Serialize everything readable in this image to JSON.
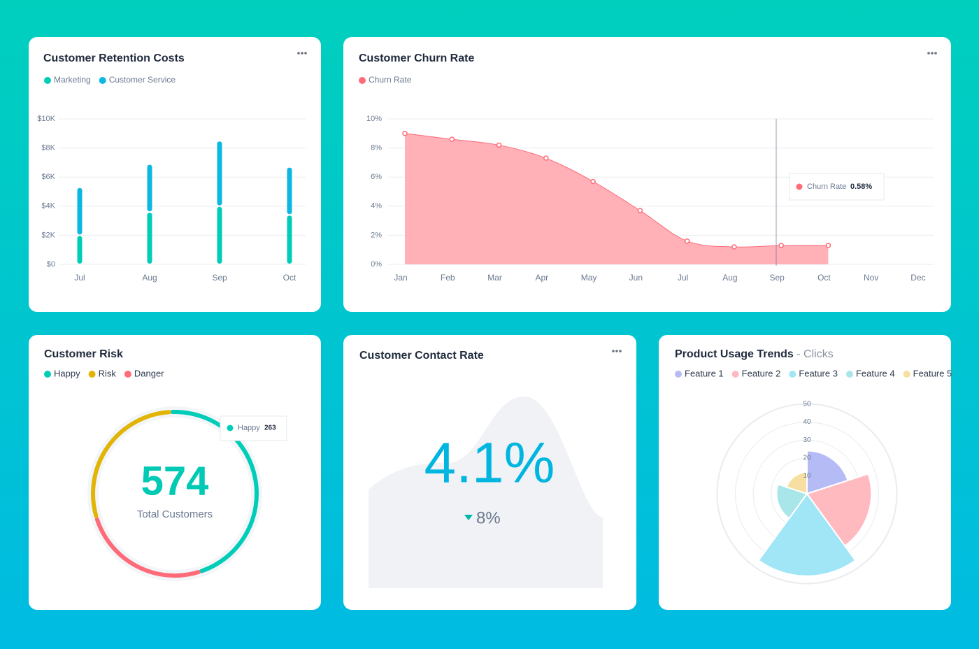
{
  "chart_data": [
    {
      "type": "bar",
      "stacked": true,
      "title": "Customer Retention Costs",
      "categories": [
        "Jul",
        "Aug",
        "Sep",
        "Oct"
      ],
      "series": [
        {
          "name": "Marketing",
          "color": "#00cdb8",
          "values": [
            2000,
            3600,
            4000,
            3400
          ]
        },
        {
          "name": "Customer Service",
          "color": "#0cb8e2",
          "values": [
            3300,
            3300,
            4500,
            3300
          ]
        }
      ],
      "ylim": [
        0,
        10000
      ],
      "yticks": [
        {
          "value": 0,
          "label": "$0"
        },
        {
          "value": 2000,
          "label": "$2K"
        },
        {
          "value": 4000,
          "label": "$4K"
        },
        {
          "value": 6000,
          "label": "$6K"
        },
        {
          "value": 8000,
          "label": "$8K"
        },
        {
          "value": 10000,
          "label": "$10K"
        }
      ],
      "grid": true
    },
    {
      "type": "area",
      "title": "Customer Churn Rate",
      "categories": [
        "Jan",
        "Feb",
        "Mar",
        "Apr",
        "May",
        "Jun",
        "Jul",
        "Aug",
        "Sep",
        "Oct",
        "Nov",
        "Dec"
      ],
      "series": [
        {
          "name": "Churn Rate",
          "color": "#ff6b78",
          "fill": "#ffb1b7",
          "values": [
            9.0,
            8.6,
            8.2,
            7.3,
            5.7,
            3.7,
            1.6,
            1.2,
            1.3,
            1.3,
            null,
            null
          ]
        }
      ],
      "ylim": [
        0,
        10
      ],
      "yticks": [
        {
          "value": 0,
          "label": "0%"
        },
        {
          "value": 2,
          "label": "2%"
        },
        {
          "value": 4,
          "label": "4%"
        },
        {
          "value": 6,
          "label": "6%"
        },
        {
          "value": 8,
          "label": "8%"
        },
        {
          "value": 10,
          "label": "10%"
        }
      ],
      "grid": true,
      "tooltip_value": "0.58%"
    },
    {
      "type": "donut",
      "title": "Customer Risk",
      "categories": [
        "Happy",
        "Risk",
        "Danger"
      ],
      "colors": [
        "#00cdb8",
        "#e2b406",
        "#ff6b78"
      ],
      "values": [
        263,
        166,
        145
      ],
      "total": 574,
      "total_label": "Total Customers"
    },
    {
      "type": "kpi",
      "title": "Customer Contact Rate",
      "value": "4.1%",
      "change": "8%"
    },
    {
      "type": "polar",
      "title": "Product Usage Trends",
      "subtitle": "- Clicks",
      "categories": [
        "Feature 1",
        "Feature 2",
        "Feature 3",
        "Feature 4",
        "Feature 5"
      ],
      "colors": [
        "#b4bbf5",
        "#ffbac0",
        "#a0e6f6",
        "#a9e6e9",
        "#f6dfa0"
      ],
      "values": [
        24,
        36,
        46,
        17,
        12
      ],
      "rlim": [
        0,
        50
      ],
      "rticks": [
        10,
        20,
        30,
        40,
        50
      ]
    }
  ]
}
